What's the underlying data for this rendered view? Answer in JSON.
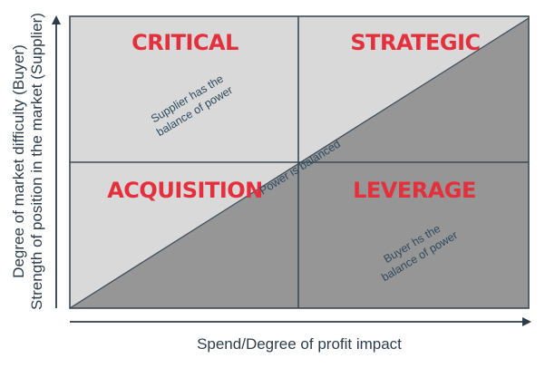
{
  "colors": {
    "light_region": "#d9d9d9",
    "dark_region": "#969696",
    "border": "#3c4a56",
    "title_red": "#e4303d",
    "note_text": "#2e4a5e",
    "axis_text": "#2e3d4a",
    "arrow": "#2e3d4a"
  },
  "quadrants": {
    "top_left": {
      "title": "CRITICAL"
    },
    "top_right": {
      "title": "STRATEGIC"
    },
    "bottom_left": {
      "title": "ACQUISITION"
    },
    "bottom_right": {
      "title": "LEVERAGE"
    }
  },
  "notes": {
    "supplier_line1": "Supplier has the",
    "supplier_line2": "balance of power",
    "balanced": "Power is balanced",
    "buyer_line1": "Buyer hs the",
    "buyer_line2": "balance of power"
  },
  "axes": {
    "x_label": "Spend/Degree of profit impact",
    "y_label_line1": "Degree of market difficulty (Buyer)",
    "y_label_line2": "Strength of position in the market (Supplier)"
  }
}
